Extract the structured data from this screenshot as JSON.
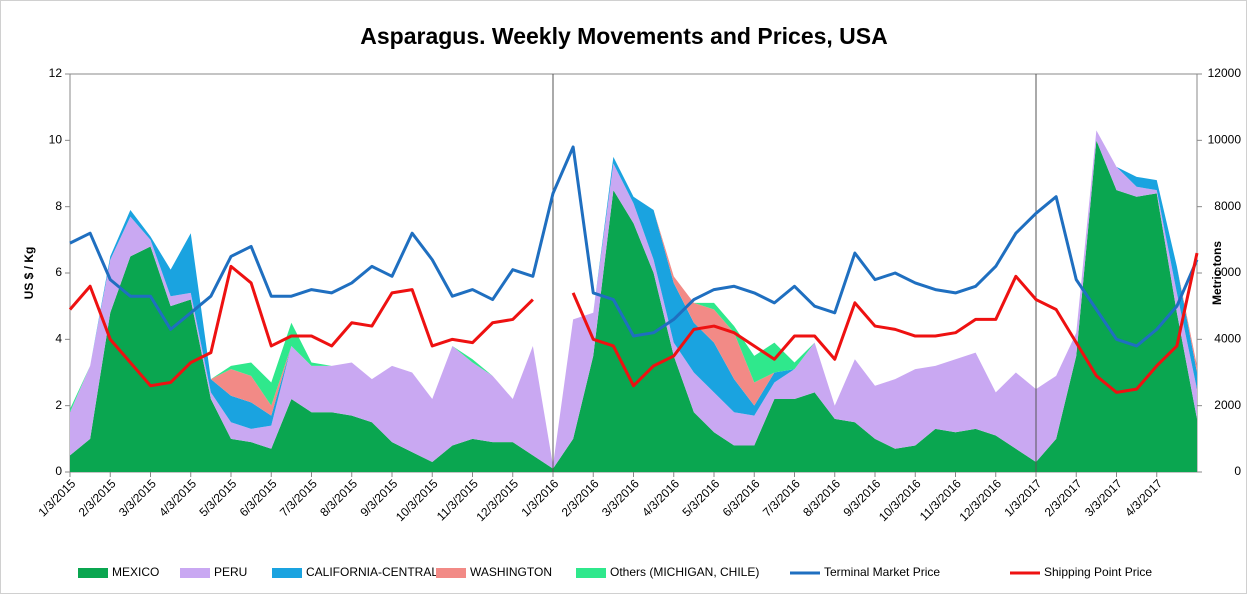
{
  "chart_data": {
    "type": "area",
    "title": "Asparagus. Weekly Movements and Prices, USA",
    "ylabel": "US $ / Kg",
    "y2label": "Metric tons",
    "categories": [
      "1/3/2015",
      null,
      "2/3/2015",
      null,
      "3/3/2015",
      null,
      "4/3/2015",
      null,
      "5/3/2015",
      null,
      "6/3/2015",
      null,
      "7/3/2015",
      null,
      "8/3/2015",
      null,
      "9/3/2015",
      null,
      "10/3/2015",
      null,
      "11/3/2015",
      null,
      "12/3/2015",
      null,
      "1/3/2016",
      null,
      "2/3/2016",
      null,
      "3/3/2016",
      null,
      "4/3/2016",
      null,
      "5/3/2016",
      null,
      "6/3/2016",
      null,
      "7/3/2016",
      null,
      "8/3/2016",
      null,
      "9/3/2016",
      null,
      "10/3/2016",
      null,
      "11/3/2016",
      null,
      "12/3/2016",
      null,
      "1/3/2017",
      null,
      "2/3/2017",
      null,
      "3/3/2017",
      null,
      "4/3/2017",
      null,
      null
    ],
    "ylim": [
      0,
      12
    ],
    "yticks": [
      0,
      2,
      4,
      6,
      8,
      10,
      12
    ],
    "y2lim": [
      0,
      12000
    ],
    "y2ticks": [
      0,
      2000,
      4000,
      6000,
      8000,
      10000,
      12000
    ],
    "stacked": true,
    "legend": "bottom",
    "series": [
      {
        "name": "MEXICO",
        "type": "area",
        "axis": "y2",
        "color": "#0aa650",
        "values": [
          500,
          1000,
          4800,
          6500,
          6800,
          5000,
          5200,
          2200,
          1000,
          900,
          700,
          2200,
          1800,
          1800,
          1700,
          1500,
          900,
          600,
          300,
          800,
          1000,
          900,
          900,
          500,
          100,
          1000,
          3500,
          8500,
          7500,
          6000,
          3500,
          1800,
          1200,
          800,
          800,
          2200,
          2200,
          2400,
          1600,
          1500,
          1000,
          700,
          800,
          1300,
          1200,
          1300,
          1100,
          700,
          300,
          1000,
          3500,
          10000,
          8500,
          8300,
          8400,
          4800,
          1600
        ]
      },
      {
        "name": "PERU",
        "type": "area",
        "axis": "y2",
        "color": "#c9a8f2",
        "values": [
          1300,
          2200,
          1600,
          1200,
          200,
          300,
          200,
          200,
          500,
          400,
          700,
          1600,
          1400,
          1400,
          1600,
          1300,
          2300,
          2400,
          1900,
          3000,
          2300,
          2000,
          1300,
          3300,
          100,
          3600,
          1300,
          800,
          600,
          400,
          400,
          1200,
          1200,
          1000,
          900,
          500,
          900,
          1500,
          400,
          1900,
          1600,
          2100,
          2300,
          1900,
          2200,
          2300,
          1300,
          2300,
          2200,
          1900,
          700,
          300,
          700,
          300,
          100,
          600,
          900
        ]
      },
      {
        "name": "CALIFORNIA-CENTRAL",
        "type": "area",
        "axis": "y2",
        "color": "#1aa3e0",
        "values": [
          0,
          0,
          100,
          200,
          100,
          800,
          1800,
          400,
          800,
          800,
          300,
          0,
          0,
          0,
          0,
          0,
          0,
          0,
          0,
          0,
          0,
          0,
          0,
          0,
          0,
          0,
          0,
          200,
          200,
          1500,
          1800,
          1500,
          1500,
          1000,
          300,
          300,
          0,
          0,
          0,
          0,
          0,
          0,
          0,
          0,
          0,
          0,
          0,
          0,
          0,
          0,
          0,
          0,
          0,
          300,
          300,
          800,
          500
        ]
      },
      {
        "name": "WASHINGTON",
        "type": "area",
        "axis": "y2",
        "color": "#f28a86",
        "values": [
          0,
          0,
          0,
          0,
          0,
          0,
          0,
          0,
          800,
          800,
          300,
          0,
          0,
          0,
          0,
          0,
          0,
          0,
          0,
          0,
          0,
          0,
          0,
          0,
          0,
          0,
          0,
          0,
          0,
          0,
          200,
          600,
          1000,
          1400,
          700,
          0,
          0,
          0,
          0,
          0,
          0,
          0,
          0,
          0,
          0,
          0,
          0,
          0,
          0,
          0,
          0,
          0,
          0,
          0,
          0,
          0,
          200
        ]
      },
      {
        "name": "Others (MICHIGAN, CHILE)",
        "type": "area",
        "axis": "y2",
        "color": "#2fe88c",
        "values": [
          100,
          0,
          0,
          0,
          0,
          0,
          0,
          0,
          100,
          400,
          700,
          700,
          100,
          0,
          0,
          0,
          0,
          0,
          0,
          0,
          100,
          0,
          0,
          0,
          0,
          0,
          0,
          0,
          0,
          0,
          0,
          0,
          200,
          200,
          800,
          900,
          200,
          0,
          0,
          0,
          0,
          0,
          0,
          0,
          0,
          0,
          0,
          0,
          0,
          0,
          0,
          0,
          0,
          0,
          0,
          0,
          0
        ]
      },
      {
        "name": "Terminal Market Price",
        "type": "line",
        "axis": "y",
        "color": "#1f6fc0",
        "values": [
          6.9,
          7.2,
          5.8,
          5.3,
          5.3,
          4.3,
          4.8,
          5.3,
          6.5,
          6.8,
          5.3,
          5.3,
          5.5,
          5.4,
          5.7,
          6.2,
          5.9,
          7.2,
          6.4,
          5.3,
          5.5,
          5.2,
          6.1,
          5.9,
          8.4,
          9.8,
          5.4,
          5.2,
          4.1,
          4.2,
          4.6,
          5.2,
          5.5,
          5.6,
          5.4,
          5.1,
          5.6,
          5.0,
          4.8,
          6.6,
          5.8,
          6.0,
          5.7,
          5.5,
          5.4,
          5.6,
          6.2,
          7.2,
          7.8,
          8.3,
          5.8,
          4.9,
          4.0,
          3.8,
          4.3,
          5.0,
          6.4
        ]
      },
      {
        "name": "Shipping Point Price",
        "type": "line",
        "axis": "y",
        "color": "#ee1111",
        "values": [
          4.9,
          5.6,
          4.0,
          3.3,
          2.6,
          2.7,
          3.3,
          3.6,
          6.2,
          5.7,
          3.8,
          4.1,
          4.1,
          3.8,
          4.5,
          4.4,
          5.4,
          5.5,
          3.8,
          4.0,
          3.9,
          4.5,
          4.6,
          5.2,
          null,
          5.4,
          4.0,
          3.8,
          2.6,
          3.2,
          3.5,
          4.3,
          4.4,
          4.2,
          3.8,
          3.4,
          4.1,
          4.1,
          3.4,
          5.1,
          4.4,
          4.3,
          4.1,
          4.1,
          4.2,
          4.6,
          4.6,
          5.9,
          5.2,
          4.9,
          3.9,
          2.9,
          2.4,
          2.5,
          3.2,
          3.8,
          6.6
        ]
      }
    ]
  }
}
